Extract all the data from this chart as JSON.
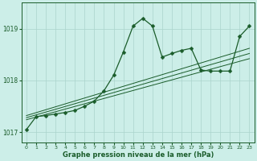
{
  "bg_color": "#cceee8",
  "grid_color": "#aad4cc",
  "line_color": "#1a5c2a",
  "marker_color": "#1a5c2a",
  "xlabel": "Graphe pression niveau de la mer (hPa)",
  "ylim": [
    1016.8,
    1019.5
  ],
  "xlim": [
    -0.5,
    23.5
  ],
  "yticks": [
    1017,
    1018,
    1019
  ],
  "xticks": [
    0,
    1,
    2,
    3,
    4,
    5,
    6,
    7,
    8,
    9,
    10,
    11,
    12,
    13,
    14,
    15,
    16,
    17,
    18,
    19,
    20,
    21,
    22,
    23
  ],
  "series": [
    {
      "x": [
        0,
        1,
        2,
        3,
        4,
        5,
        6,
        7,
        8,
        9,
        10,
        11,
        12,
        13,
        14,
        15,
        16,
        17,
        18,
        19,
        20,
        21,
        22,
        23
      ],
      "y": [
        1017.05,
        1017.3,
        1017.32,
        1017.35,
        1017.38,
        1017.42,
        1017.5,
        1017.6,
        1017.8,
        1018.1,
        1018.55,
        1019.05,
        1019.2,
        1019.05,
        1018.45,
        1018.52,
        1018.58,
        1018.62,
        1018.2,
        1018.18,
        1018.18,
        1018.18,
        1018.85,
        1019.05
      ],
      "has_markers": true,
      "lw": 0.9,
      "ms": 2.5
    },
    {
      "x": [
        0,
        23
      ],
      "y": [
        1017.32,
        1018.62
      ],
      "has_markers": false,
      "lw": 0.7
    },
    {
      "x": [
        0,
        23
      ],
      "y": [
        1017.28,
        1018.52
      ],
      "has_markers": false,
      "lw": 0.7
    },
    {
      "x": [
        0,
        23
      ],
      "y": [
        1017.24,
        1018.42
      ],
      "has_markers": false,
      "lw": 0.7
    }
  ]
}
